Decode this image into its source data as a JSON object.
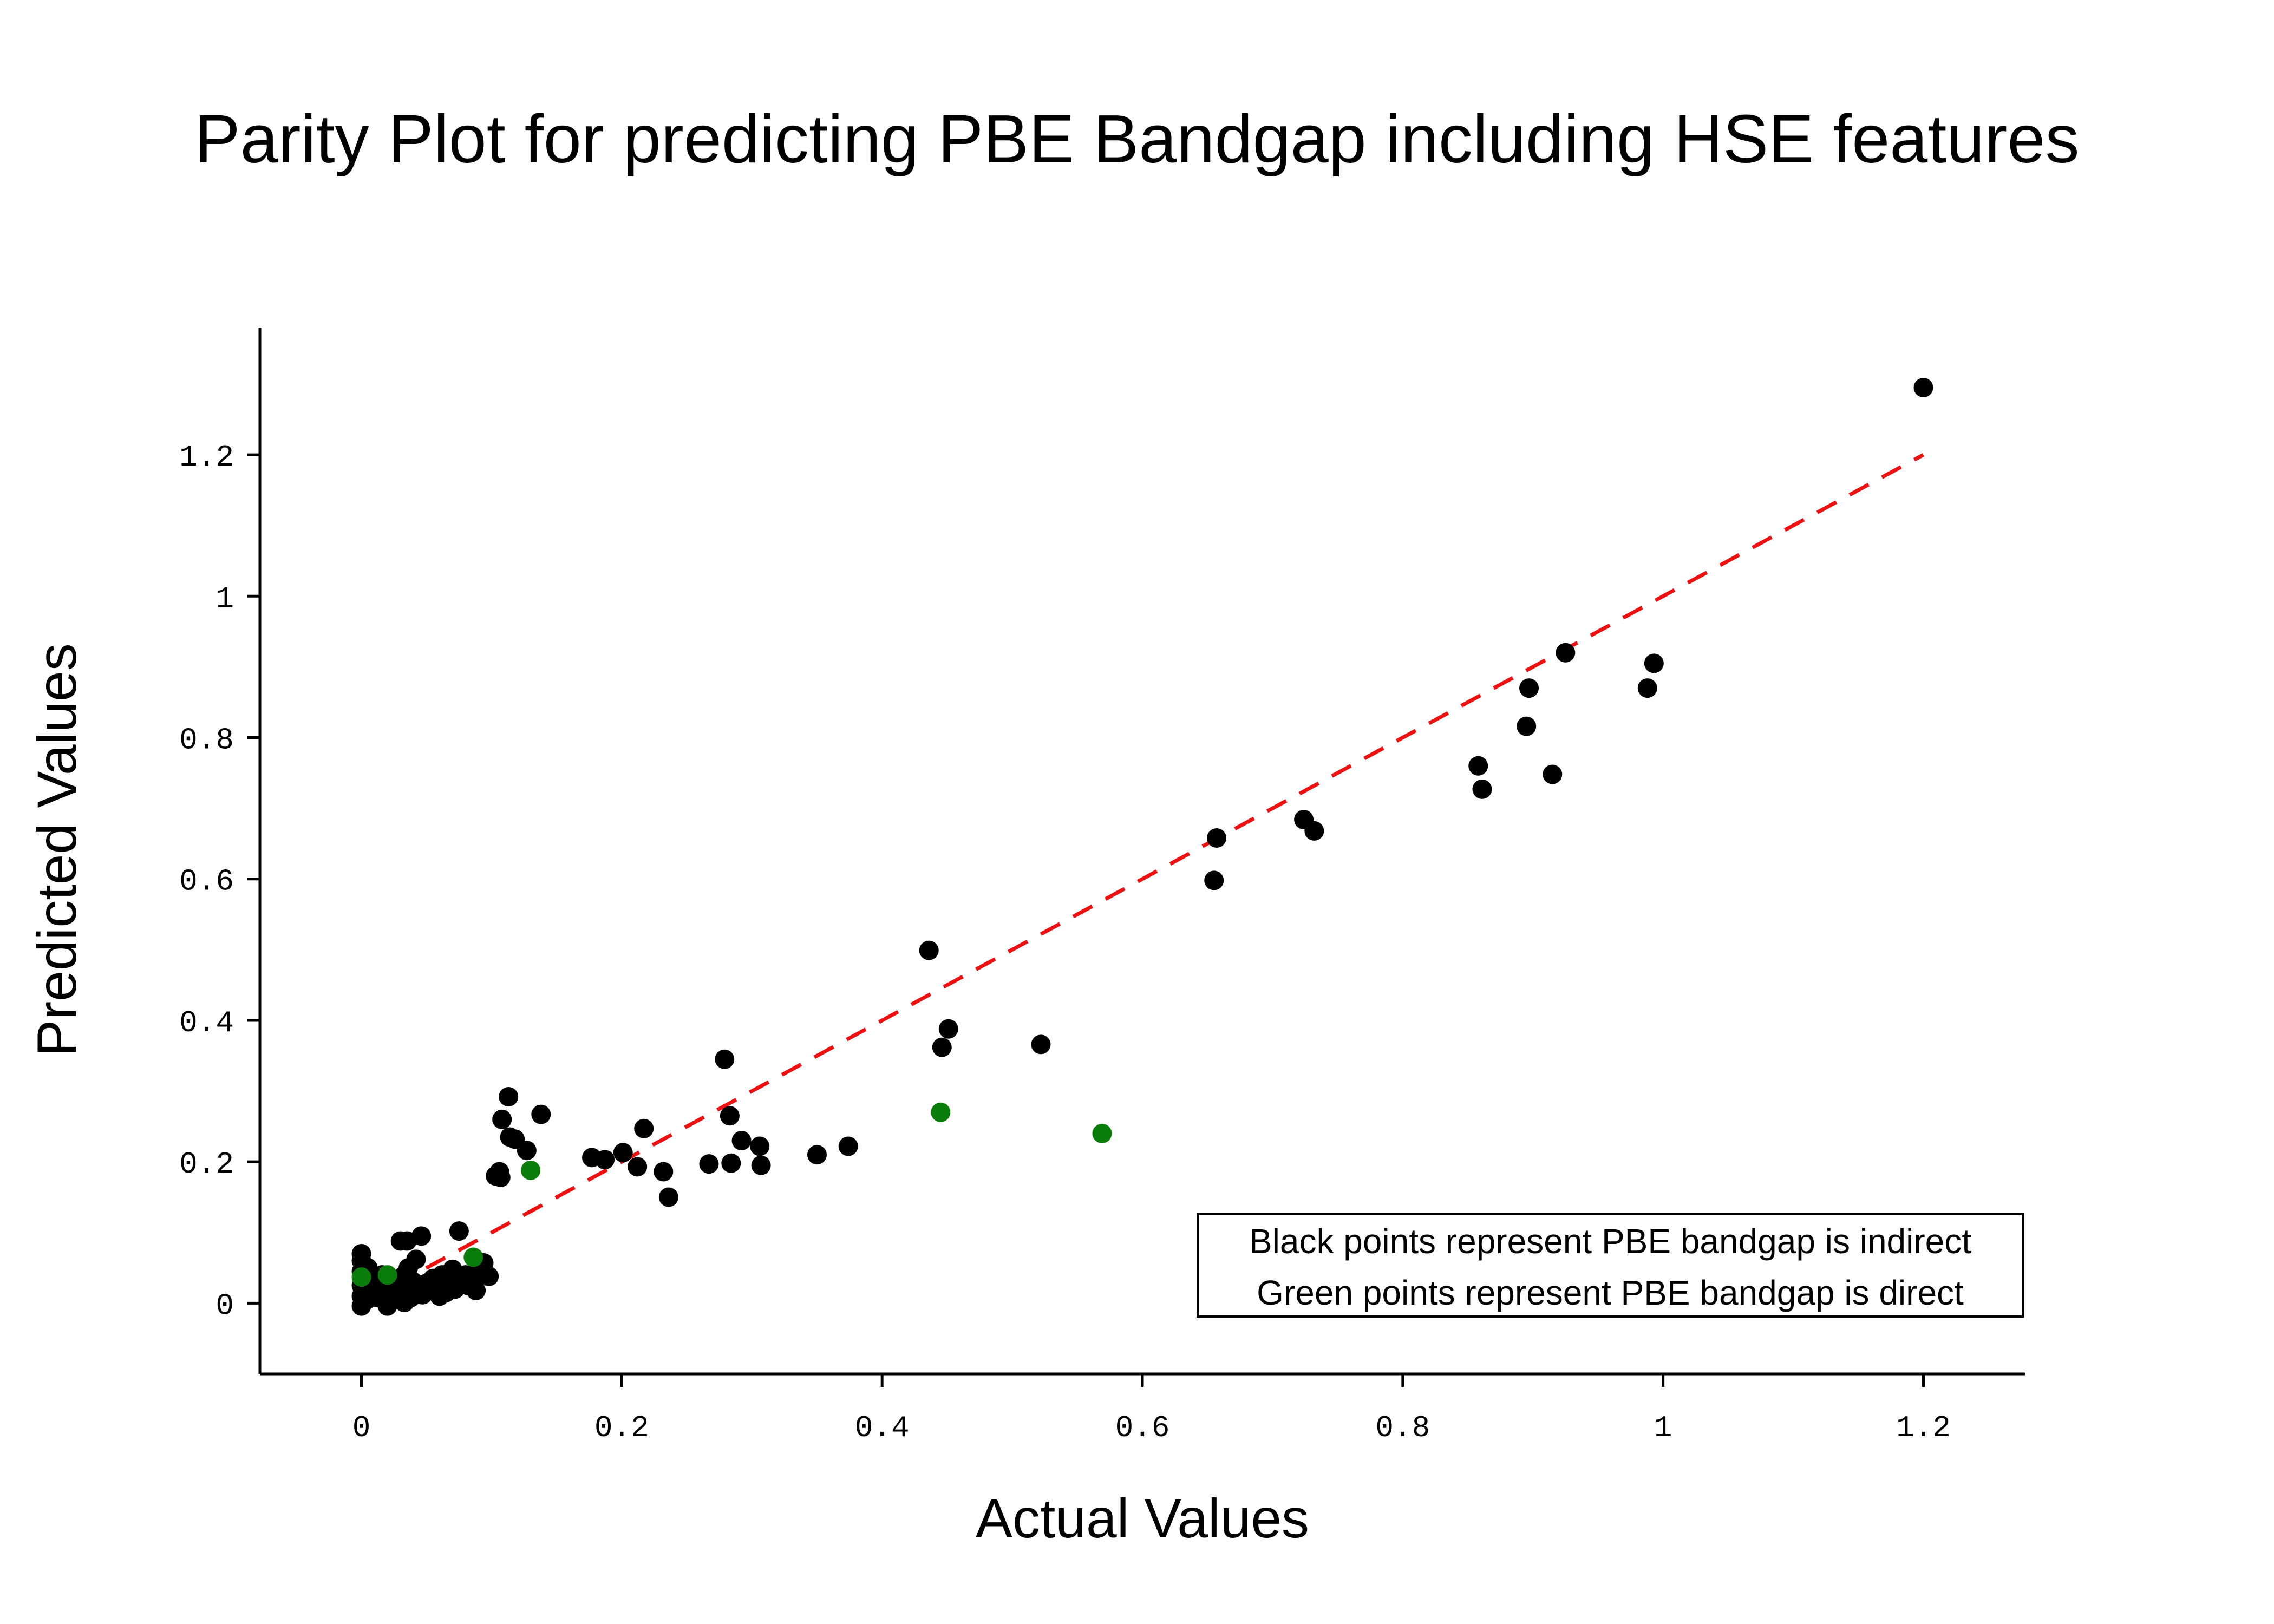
{
  "chart_data": {
    "type": "scatter",
    "title": "Parity Plot for predicting PBE Bandgap including HSE features",
    "xlabel": "Actual Values",
    "ylabel": "Predicted Values",
    "xlim": [
      -0.078,
      1.278
    ],
    "ylim": [
      -0.1,
      1.38
    ],
    "xticks": [
      0,
      0.2,
      0.4,
      0.6,
      0.8,
      1,
      1.2
    ],
    "xtick_labels": [
      "0",
      "0.2",
      "0.4",
      "0.6",
      "0.8",
      "1",
      "1.2"
    ],
    "yticks": [
      0,
      0.2,
      0.4,
      0.6,
      0.8,
      1,
      1.2
    ],
    "ytick_labels": [
      "0",
      "0.2",
      "0.4",
      "0.6",
      "0.8",
      "1",
      "1.2"
    ],
    "grid": false,
    "legend_position": "bottom-right",
    "annotation_lines": [
      "Black points represent PBE bandgap is indirect",
      "Green points represent PBE bandgap is direct"
    ],
    "parity_line": {
      "x": [
        0,
        1.2
      ],
      "y": [
        0,
        1.2
      ],
      "color": "#ee1111",
      "style": "dashed"
    },
    "series": [
      {
        "color": "#000000",
        "x": [
          1.2,
          0.993,
          0.988,
          0.925,
          0.915,
          0.897,
          0.895,
          0.861,
          0.858,
          0.732,
          0.724,
          0.657,
          0.655,
          0.522,
          0.451,
          0.446,
          0.436,
          0.374,
          0.35,
          0.307,
          0.306,
          0.292,
          0.284,
          0.283,
          0.279,
          0.267,
          0.236,
          0.232,
          0.217,
          0.212,
          0.201,
          0.187,
          0.177,
          0.138,
          0.127,
          0.118,
          0.114,
          0.113,
          0.108,
          0.107,
          0.106,
          0.103,
          0.098,
          0.094,
          0.09,
          0.088,
          0.085,
          0.082,
          0.08,
          0.078,
          0.075,
          0.074,
          0.072,
          0.07,
          0.068,
          0.065,
          0.062,
          0.06,
          0.058,
          0.055,
          0.052,
          0.05,
          0.047,
          0.046,
          0.044,
          0.042,
          0.04,
          0.038,
          0.036,
          0.035,
          0.034,
          0.033,
          0.032,
          0.03,
          0.028,
          0.026,
          0.024,
          0.022,
          0.02,
          0.018,
          0.016,
          0.014,
          0.012,
          0.01,
          0.008,
          0.006,
          0.005,
          0.004,
          0.003,
          0.002,
          0.001,
          0.0,
          0.0,
          0.0,
          0.0,
          0.0,
          0.0
        ],
        "y": [
          1.295,
          0.905,
          0.87,
          0.92,
          0.748,
          0.87,
          0.816,
          0.727,
          0.76,
          0.668,
          0.684,
          0.658,
          0.598,
          0.366,
          0.388,
          0.362,
          0.499,
          0.222,
          0.21,
          0.195,
          0.222,
          0.23,
          0.198,
          0.265,
          0.345,
          0.197,
          0.15,
          0.186,
          0.247,
          0.193,
          0.213,
          0.203,
          0.206,
          0.267,
          0.216,
          0.232,
          0.235,
          0.292,
          0.26,
          0.178,
          0.186,
          0.18,
          0.038,
          0.057,
          0.045,
          0.018,
          0.03,
          0.025,
          0.04,
          0.028,
          0.102,
          0.035,
          0.02,
          0.048,
          0.03,
          0.015,
          0.04,
          0.01,
          0.025,
          0.035,
          0.018,
          0.028,
          0.012,
          0.095,
          0.02,
          0.062,
          0.03,
          0.008,
          0.05,
          0.088,
          0.02,
          0.001,
          0.038,
          0.088,
          0.015,
          0.032,
          0.022,
          0.01,
          -0.004,
          0.025,
          0.04,
          0.018,
          0.008,
          0.03,
          0.02,
          0.012,
          0.05,
          0.005,
          0.028,
          0.015,
          0.035,
          0.07,
          0.06,
          0.045,
          0.025,
          0.01,
          -0.004
        ]
      },
      {
        "color": "#0a7d0a",
        "x": [
          0.569,
          0.445,
          0.13,
          0.086,
          0.02,
          0.0
        ],
        "y": [
          0.24,
          0.27,
          0.188,
          0.065,
          0.04,
          0.037
        ]
      }
    ]
  }
}
